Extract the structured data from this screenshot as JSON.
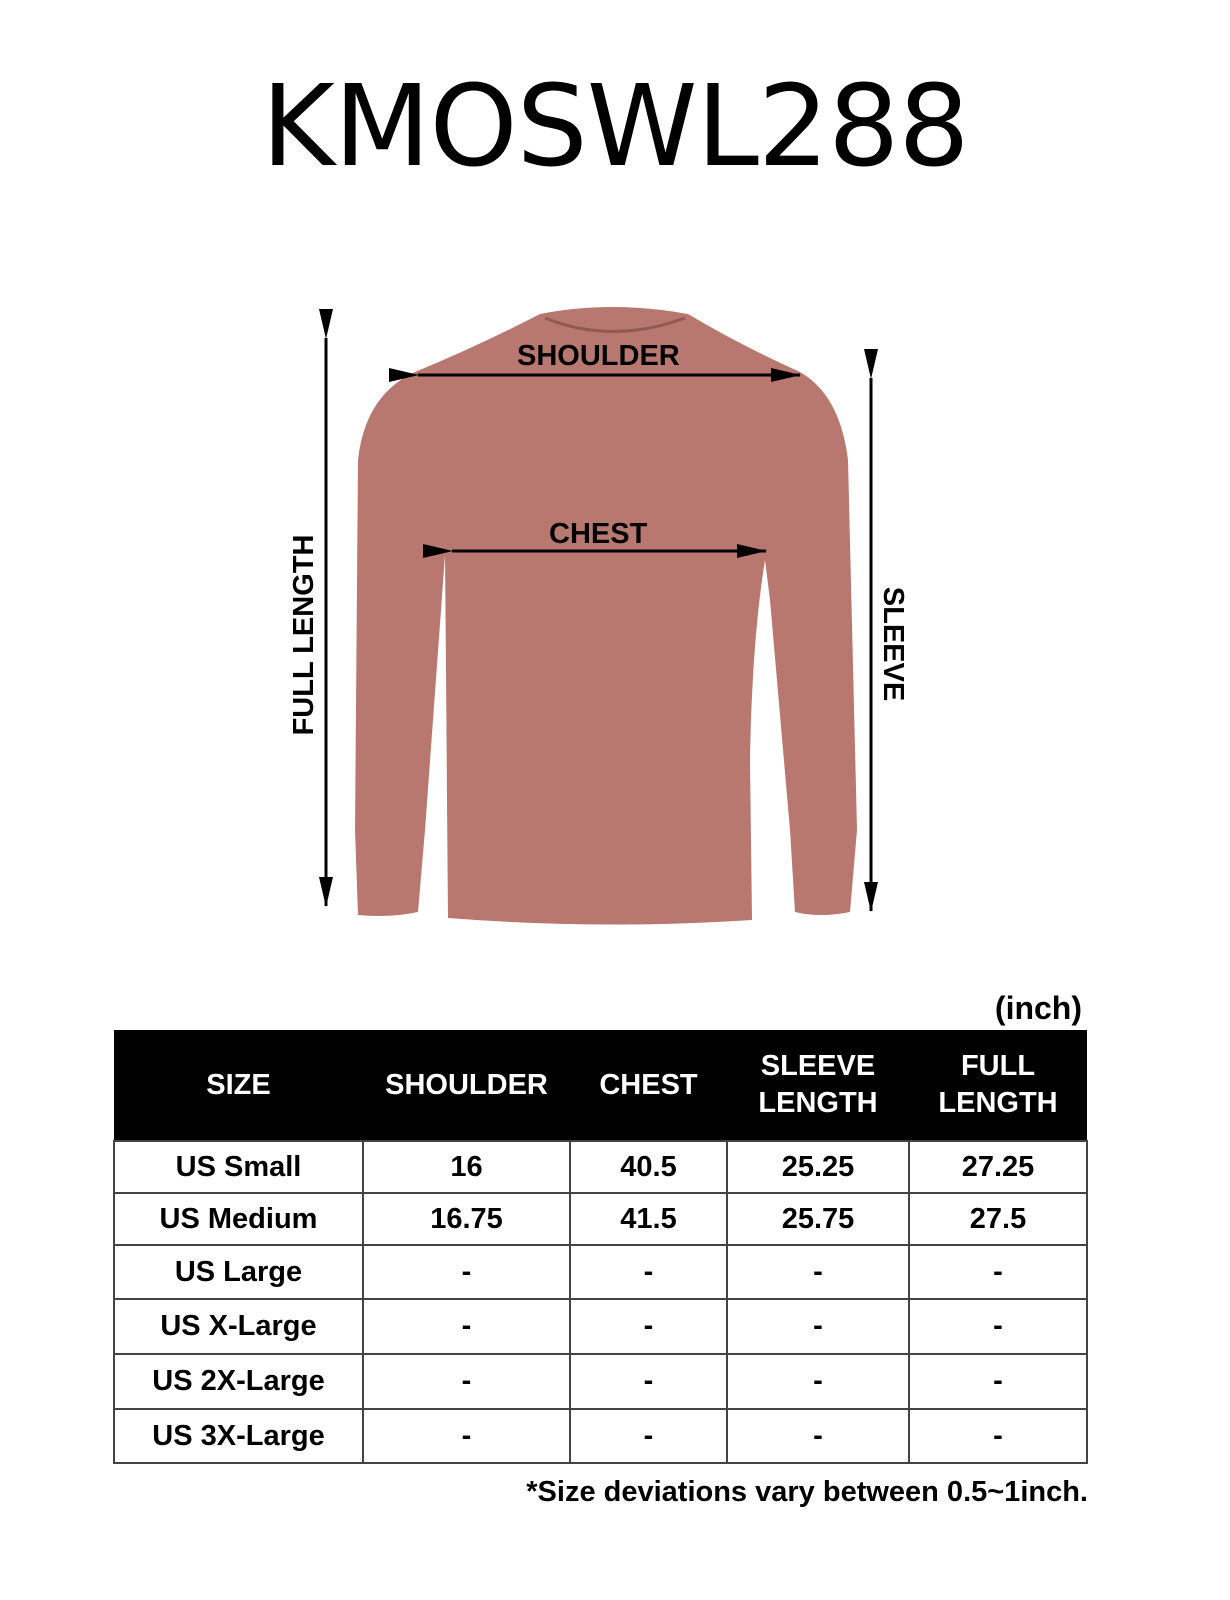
{
  "title": "KMOSWL288",
  "diagram": {
    "garment_color": "#b8786f",
    "labels": {
      "shoulder": "SHOULDER",
      "chest": "CHEST",
      "full_length": "FULL LENGTH",
      "sleeve": "SLEEVE"
    }
  },
  "unit": "(inch)",
  "table": {
    "headers": [
      "SIZE",
      "SHOULDER",
      "CHEST",
      "SLEEVE LENGTH",
      "FULL LENGTH"
    ],
    "rows": [
      [
        "US Small",
        "16",
        "40.5",
        "25.25",
        "27.25"
      ],
      [
        "US Medium",
        "16.75",
        "41.5",
        "25.75",
        "27.5"
      ],
      [
        "US Large",
        "-",
        "-",
        "-",
        "-"
      ],
      [
        "US X-Large",
        "-",
        "-",
        "-",
        "-"
      ],
      [
        "US 2X-Large",
        "-",
        "-",
        "-",
        "-"
      ],
      [
        "US 3X-Large",
        "-",
        "-",
        "-",
        "-"
      ]
    ]
  },
  "note": "*Size deviations vary between 0.5~1inch."
}
